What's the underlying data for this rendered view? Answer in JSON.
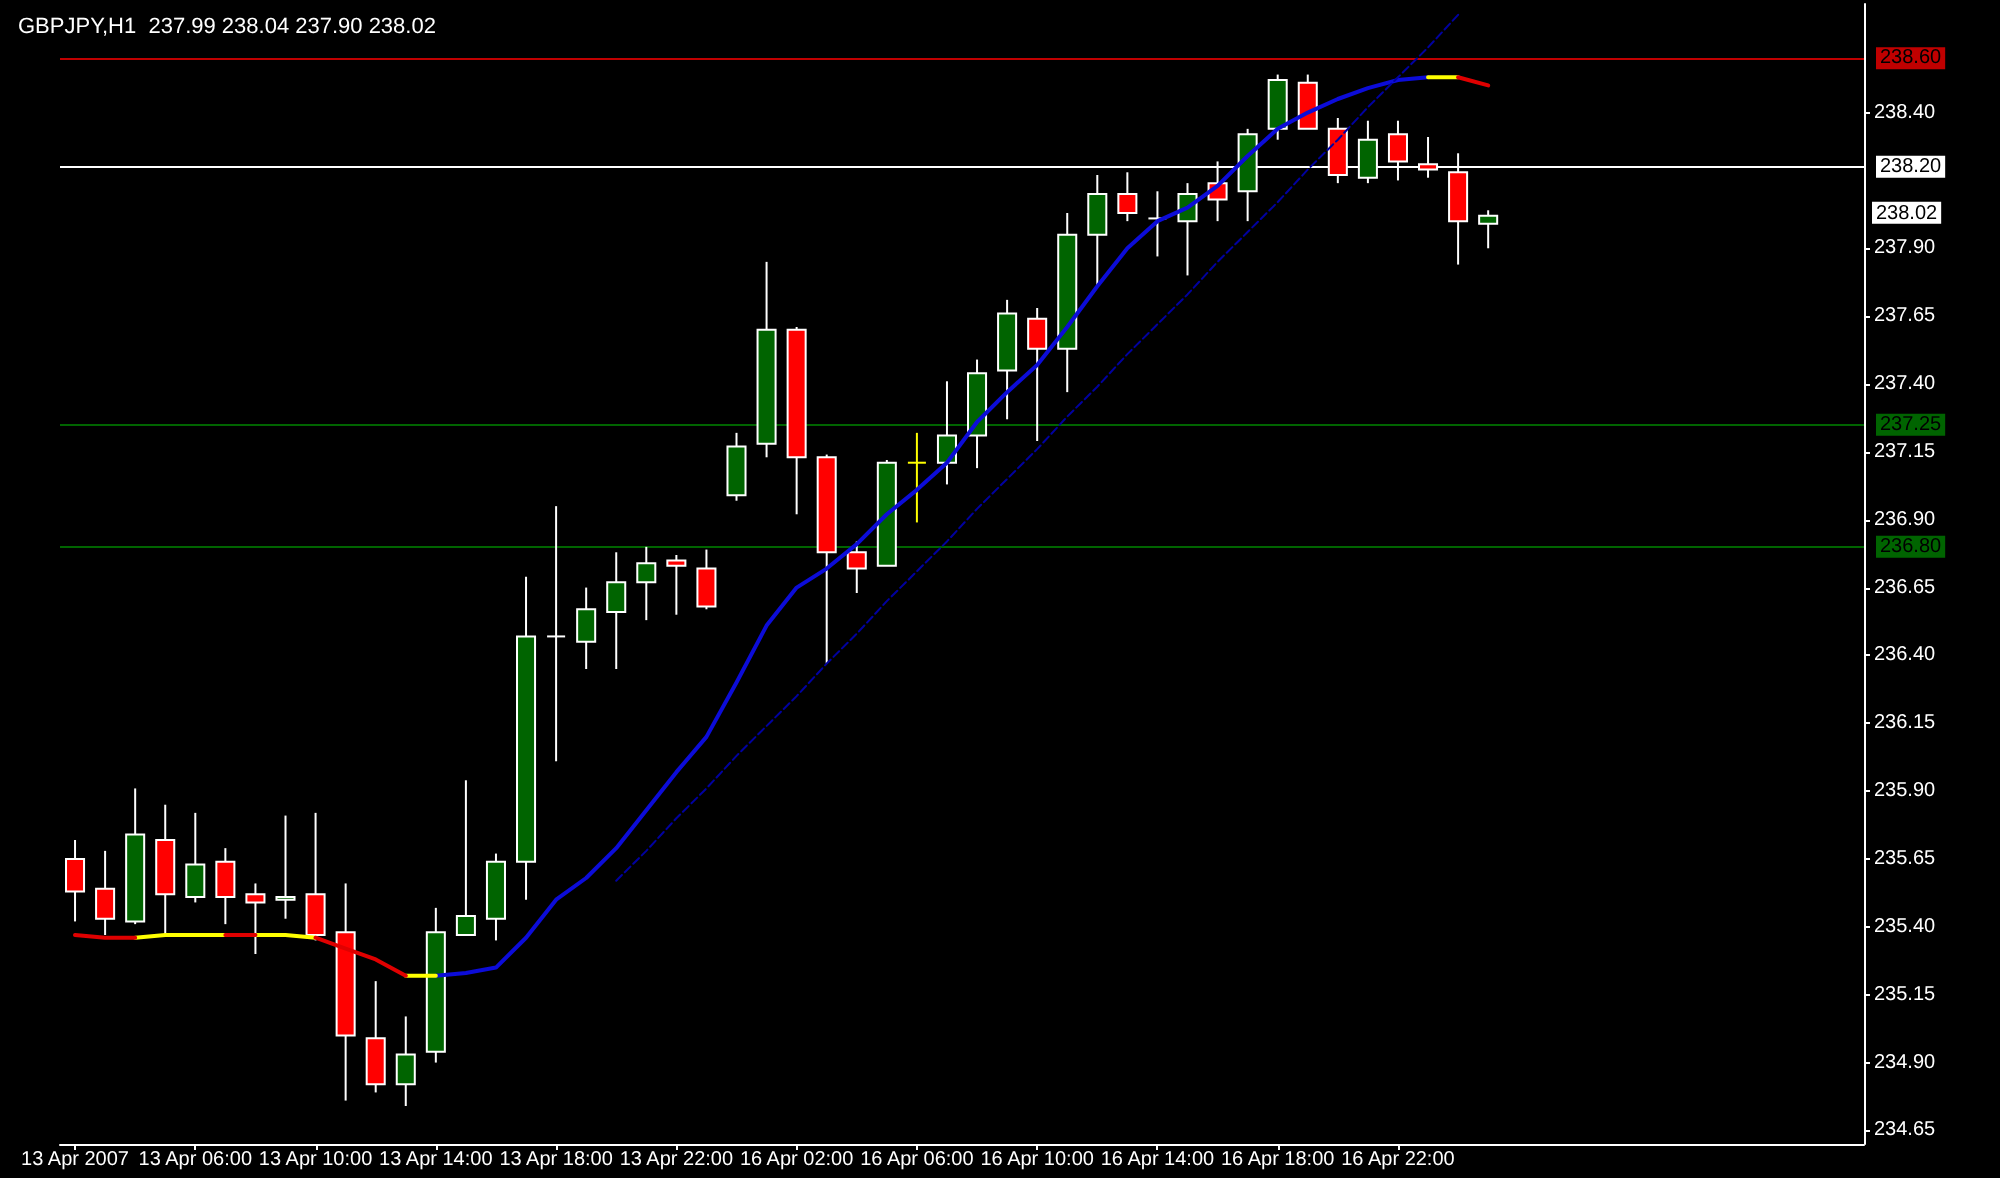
{
  "chart_data": {
    "type": "candlestick",
    "title": "GBPJPY,H1  237.99 238.04 237.90 238.02",
    "categories": [
      "13 Apr 2007",
      null,
      null,
      null,
      "13 Apr 06:00",
      null,
      null,
      null,
      "13 Apr 10:00",
      null,
      null,
      null,
      "13 Apr 14:00",
      null,
      null,
      null,
      "13 Apr 18:00",
      null,
      null,
      null,
      "13 Apr 22:00",
      null,
      null,
      null,
      "16 Apr 02:00",
      null,
      null,
      null,
      "16 Apr 06:00",
      null,
      null,
      null,
      "16 Apr 10:00",
      null,
      null,
      null,
      "16 Apr 14:00",
      null,
      null,
      null,
      "16 Apr 18:00",
      null,
      null,
      null,
      "16 Apr 22:00",
      null,
      null,
      null,
      null,
      null,
      null,
      null,
      null,
      null,
      null,
      null,
      null,
      null,
      null,
      null
    ],
    "ohlc": [
      [
        235.65,
        235.72,
        235.42,
        235.53
      ],
      [
        235.54,
        235.68,
        235.37,
        235.43
      ],
      [
        235.42,
        235.91,
        235.41,
        235.74
      ],
      [
        235.72,
        235.85,
        235.37,
        235.52
      ],
      [
        235.51,
        235.82,
        235.49,
        235.63
      ],
      [
        235.64,
        235.69,
        235.41,
        235.51
      ],
      [
        235.52,
        235.56,
        235.3,
        235.49
      ],
      [
        235.5,
        235.81,
        235.43,
        235.51
      ],
      [
        235.52,
        235.82,
        235.35,
        235.37
      ],
      [
        235.38,
        235.56,
        234.76,
        235.0
      ],
      [
        234.99,
        235.2,
        234.79,
        234.82
      ],
      [
        234.82,
        235.07,
        234.74,
        234.93
      ],
      [
        234.94,
        235.47,
        234.9,
        235.38
      ],
      [
        235.37,
        235.94,
        235.37,
        235.44
      ],
      [
        235.43,
        235.67,
        235.35,
        235.64
      ],
      [
        235.64,
        236.69,
        235.5,
        236.47
      ],
      [
        236.47,
        236.95,
        236.01,
        236.47
      ],
      [
        236.45,
        236.65,
        236.35,
        236.57
      ],
      [
        236.56,
        236.78,
        236.35,
        236.67
      ],
      [
        236.67,
        236.8,
        236.53,
        236.74
      ],
      [
        236.75,
        236.77,
        236.55,
        236.73
      ],
      [
        236.72,
        236.79,
        236.57,
        236.58
      ],
      [
        236.99,
        237.22,
        236.97,
        237.17
      ],
      [
        237.18,
        237.85,
        237.13,
        237.6
      ],
      [
        237.6,
        237.61,
        236.92,
        237.13
      ],
      [
        237.13,
        237.14,
        236.37,
        236.78
      ],
      [
        236.78,
        236.82,
        236.63,
        236.72
      ],
      [
        236.73,
        237.12,
        236.73,
        237.11
      ],
      [
        237.11,
        237.22,
        236.89,
        237.11
      ],
      [
        237.11,
        237.41,
        237.03,
        237.21
      ],
      [
        237.21,
        237.49,
        237.09,
        237.44
      ],
      [
        237.45,
        237.71,
        237.27,
        237.66
      ],
      [
        237.64,
        237.68,
        237.19,
        237.53
      ],
      [
        237.53,
        238.03,
        237.37,
        237.95
      ],
      [
        237.95,
        238.17,
        237.76,
        238.1
      ],
      [
        238.1,
        238.18,
        238.0,
        238.03
      ],
      [
        238.01,
        238.11,
        237.87,
        238.01
      ],
      [
        238.0,
        238.14,
        237.8,
        238.1
      ],
      [
        238.14,
        238.22,
        238.0,
        238.08
      ],
      [
        238.11,
        238.34,
        238.0,
        238.32
      ],
      [
        238.34,
        238.54,
        238.3,
        238.52
      ],
      [
        238.51,
        238.54,
        238.34,
        238.34
      ],
      [
        238.34,
        238.38,
        238.14,
        238.17
      ],
      [
        238.16,
        238.37,
        238.14,
        238.3
      ],
      [
        238.32,
        238.37,
        238.15,
        238.22
      ],
      [
        238.21,
        238.31,
        238.16,
        238.19
      ],
      [
        238.18,
        238.25,
        237.84,
        238.0
      ],
      [
        237.99,
        238.04,
        237.9,
        238.02
      ],
      null,
      null,
      null,
      null,
      null,
      null,
      null,
      null,
      null,
      null,
      null,
      null
    ],
    "colors": [
      "#ff0000",
      "#ff0000",
      "#006400",
      "#ff0000",
      "#006400",
      "#ff0000",
      "#ff0000",
      "#006400",
      "#ff0000",
      "#ff0000",
      "#ff0000",
      "#006400",
      "#006400",
      "#006400",
      "#006400",
      "#006400",
      "#ffffff",
      "#006400",
      "#006400",
      "#006400",
      "#ff0000",
      "#ff0000",
      "#006400",
      "#006400",
      "#ff0000",
      "#ff0000",
      "#ff0000",
      "#006400",
      "#ffff00",
      "#006400",
      "#006400",
      "#006400",
      "#ff0000",
      "#006400",
      "#006400",
      "#ff0000",
      "#ffffff",
      "#006400",
      "#ff0000",
      "#006400",
      "#006400",
      "#ff0000",
      "#ff0000",
      "#006400",
      "#ff0000",
      "#ff0000",
      "#ff0000",
      "#006400",
      null,
      null,
      null,
      null,
      null,
      null,
      null,
      null,
      null,
      null,
      null,
      null
    ],
    "series": [
      {
        "type": "line",
        "color": "#0c0cd8",
        "line_style": "solid",
        "values": [
          null,
          null,
          null,
          null,
          null,
          null,
          null,
          null,
          null,
          null,
          null,
          null,
          235.22,
          235.23,
          235.25,
          235.36,
          235.5,
          235.58,
          235.69,
          235.83,
          235.97,
          236.1,
          236.3,
          236.51,
          236.65,
          236.72,
          236.81,
          236.92,
          237.01,
          237.11,
          237.26,
          237.37,
          237.47,
          237.61,
          237.76,
          237.9,
          238.0,
          238.05,
          238.13,
          238.24,
          238.34,
          238.4,
          238.45,
          238.49,
          238.52,
          238.53,
          null,
          null,
          null,
          null,
          null,
          null,
          null,
          null,
          null,
          null,
          null,
          null,
          null,
          null
        ]
      },
      {
        "type": "line",
        "color": "#ffff00",
        "line_style": "solid",
        "values": [
          null,
          null,
          235.36,
          235.37,
          235.37,
          235.37,
          null,
          null,
          null,
          null,
          null,
          235.22,
          235.22,
          null,
          null,
          null,
          null,
          null,
          null,
          null,
          null,
          null,
          null,
          null,
          null,
          null,
          null,
          null,
          null,
          null,
          null,
          null,
          null,
          null,
          null,
          null,
          null,
          null,
          null,
          null,
          null,
          null,
          null,
          null,
          null,
          238.53,
          238.53,
          null,
          null,
          null,
          null,
          null,
          null,
          null,
          null,
          null,
          null,
          null,
          null,
          null
        ]
      },
      {
        "type": "line",
        "color": "#ffff00",
        "line_style": "solid",
        "values": [
          null,
          null,
          null,
          null,
          null,
          null,
          235.37,
          235.37,
          235.36,
          null,
          null,
          null,
          null,
          null,
          null,
          null,
          null,
          null,
          null,
          null,
          null,
          null,
          null,
          null,
          null,
          null,
          null,
          null,
          null,
          null,
          null,
          null,
          null,
          null,
          null,
          null,
          null,
          null,
          null,
          null,
          null,
          null,
          null,
          null,
          null,
          null,
          null,
          null,
          null,
          null,
          null,
          null,
          null,
          null,
          null,
          null,
          null,
          null,
          null,
          null
        ]
      },
      {
        "type": "line",
        "color": "#e00000",
        "line_style": "solid",
        "values": [
          235.37,
          235.36,
          235.36,
          null,
          null,
          235.37,
          235.37,
          null,
          235.36,
          235.32,
          235.28,
          235.22,
          null,
          null,
          null,
          null,
          null,
          null,
          null,
          null,
          null,
          null,
          null,
          null,
          null,
          null,
          null,
          null,
          null,
          null,
          null,
          null,
          null,
          null,
          null,
          null,
          null,
          null,
          null,
          null,
          null,
          null,
          null,
          null,
          null,
          null,
          238.53,
          238.5,
          null,
          null,
          null,
          null,
          null,
          null,
          null,
          null,
          null,
          null,
          null,
          null
        ]
      },
      {
        "type": "line",
        "color": "#0000a0",
        "line_style": "dashed",
        "values": [
          null,
          null,
          null,
          null,
          null,
          null,
          null,
          null,
          null,
          null,
          null,
          null,
          null,
          null,
          null,
          null,
          null,
          null,
          235.57,
          235.68,
          235.8,
          235.91,
          236.03,
          236.14,
          236.25,
          236.37,
          236.48,
          236.6,
          236.71,
          236.82,
          236.94,
          237.05,
          237.16,
          237.28,
          237.39,
          237.51,
          237.62,
          237.73,
          237.85,
          237.96,
          238.07,
          238.19,
          238.3,
          238.42,
          238.53,
          238.64,
          238.76,
          null,
          null,
          null,
          null,
          null,
          null,
          null,
          null,
          null,
          null,
          null,
          null,
          null
        ]
      }
    ],
    "ylim": [
      234.6,
      238.8
    ],
    "yticks": [
      234.65,
      {
        "value": 234.9,
        "label": "234.90"
      },
      235.15,
      {
        "value": 235.4,
        "label": "235.40"
      },
      235.65,
      {
        "value": 235.9,
        "label": "235.90"
      },
      236.15,
      {
        "value": 236.4,
        "label": "236.40"
      },
      236.65,
      {
        "value": 236.9,
        "label": "236.90"
      },
      237.15,
      {
        "value": 237.4,
        "label": "237.40"
      },
      237.65,
      {
        "value": 237.9,
        "label": "237.90"
      },
      {
        "value": 238.4,
        "label": "238.40"
      }
    ],
    "ref_lines": [
      {
        "axis": "y",
        "value": 238.6,
        "label": "238.60",
        "color": "#c00000",
        "line_style": "solid"
      },
      {
        "axis": "y",
        "value": 238.2,
        "label": "238.20",
        "color": "#ffffff",
        "line_style": "solid"
      },
      {
        "axis": "y",
        "value": 237.25,
        "label": "237.25",
        "color": "#006400",
        "line_style": "solid"
      },
      {
        "axis": "y",
        "value": 236.8,
        "label": "236.80",
        "color": "#006400",
        "line_style": "solid"
      }
    ],
    "annotations": [
      "238.02"
    ],
    "marker": "none"
  }
}
